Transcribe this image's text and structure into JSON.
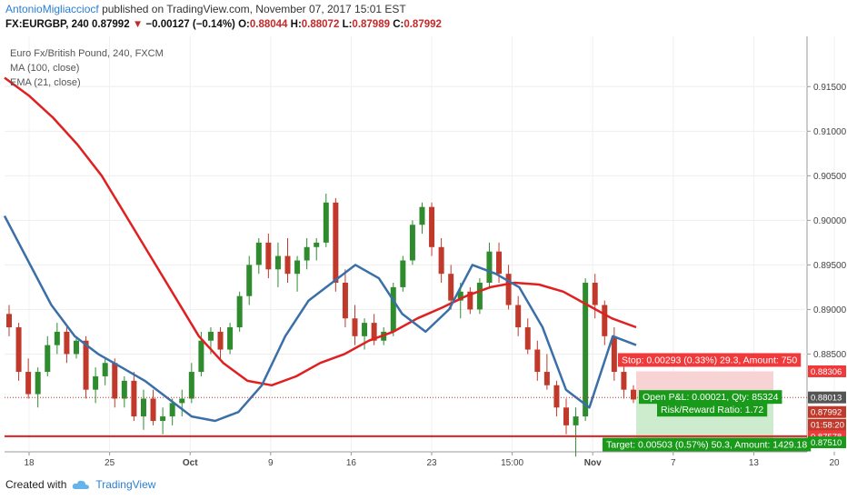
{
  "header": {
    "author": "AntonioMigliacciocf",
    "published_text": "published on TradingView.com, November 07, 2017 15:01 EST",
    "symbol": "FX:EURGBP, 240",
    "last_price": "0.87992",
    "change_arrow": "▼",
    "change": "−0.00127 (−0.14%)",
    "open_label": "O:",
    "open": "0.88044",
    "high_label": "H:",
    "high": "0.88072",
    "low_label": "L:",
    "low": "0.87989",
    "close_label": "C:",
    "close": "0.87992"
  },
  "legend": {
    "title": "Euro Fx/British Pound, 240, FXCM",
    "ma": "MA (100, close)",
    "ema": "EMA (21, close)"
  },
  "footer": {
    "created_with": "Created with",
    "brand": "TradingView"
  },
  "colors": {
    "up": "#2e8b2e",
    "down": "#c0392b",
    "ma": "#e02020",
    "ema": "#3a6fa8",
    "stop": "#f0393a",
    "target": "#1a9a1a",
    "stop_zone": "#f8d3d3",
    "target_zone": "#cdeccd",
    "support_line": "#e02020"
  },
  "chart_data": {
    "type": "candlestick",
    "title": "Euro Fx/British Pound, 240, FXCM",
    "ylim": [
      0.87403,
      0.92064
    ],
    "y_ticks": [
      "0.91500",
      "0.91000",
      "0.90500",
      "0.90000",
      "0.89500",
      "0.89000",
      "0.88500"
    ],
    "x_ticks": [
      "18",
      "25",
      "Oct",
      "9",
      "16",
      "23",
      "15:00",
      "Nov",
      "7",
      "13",
      "20"
    ],
    "price_tags": [
      {
        "value": "0.88306",
        "color": "#f0393a"
      },
      {
        "value": "0.88013",
        "color": "#555555"
      },
      {
        "value": "0.87992",
        "color": "#c0392b"
      },
      {
        "value": "01:58:20",
        "color": "#c0392b"
      },
      {
        "value": "0.87578",
        "color": "#f0393a"
      },
      {
        "value": "0.87510",
        "color": "#1a9a1a"
      }
    ],
    "support_level": 0.87578,
    "position": {
      "entry": 0.88013,
      "stop": 0.88306,
      "target": 0.8751,
      "stop_label": "Stop: 0.00293 (0.33%) 29.3, Amount: 750",
      "pnl_label": "Open P&L: 0.00021, Qty: 85324",
      "rr_label": "Risk/Reward Ratio: 1.72",
      "target_label": "Target: 0.00503 (0.57%) 50.3, Amount: 1429.18"
    },
    "ma100": [
      0.916,
      0.914,
      0.9115,
      0.9085,
      0.905,
      0.9005,
      0.896,
      0.8915,
      0.887,
      0.884,
      0.882,
      0.8815,
      0.8825,
      0.884,
      0.885,
      0.8865,
      0.8875,
      0.889,
      0.8902,
      0.8915,
      0.8925,
      0.893,
      0.8928,
      0.892,
      0.8905,
      0.889,
      0.888
    ],
    "ema21": [
      0.9005,
      0.8955,
      0.8905,
      0.887,
      0.885,
      0.8835,
      0.882,
      0.88,
      0.878,
      0.8775,
      0.8785,
      0.8815,
      0.887,
      0.891,
      0.893,
      0.895,
      0.8935,
      0.8895,
      0.8875,
      0.89,
      0.895,
      0.894,
      0.8925,
      0.888,
      0.881,
      0.879,
      0.887,
      0.886
    ],
    "candles": [
      [
        0.8895,
        0.8905,
        0.887,
        0.888
      ],
      [
        0.888,
        0.8885,
        0.882,
        0.883
      ],
      [
        0.883,
        0.8845,
        0.88,
        0.8805
      ],
      [
        0.8805,
        0.8835,
        0.879,
        0.883
      ],
      [
        0.883,
        0.887,
        0.8825,
        0.886
      ],
      [
        0.886,
        0.8885,
        0.885,
        0.8875
      ],
      [
        0.8875,
        0.888,
        0.884,
        0.885
      ],
      [
        0.885,
        0.887,
        0.8845,
        0.8865
      ],
      [
        0.8865,
        0.887,
        0.88,
        0.881
      ],
      [
        0.881,
        0.8835,
        0.8795,
        0.8825
      ],
      [
        0.8825,
        0.8845,
        0.8815,
        0.884
      ],
      [
        0.884,
        0.8845,
        0.879,
        0.88
      ],
      [
        0.88,
        0.8825,
        0.879,
        0.882
      ],
      [
        0.882,
        0.883,
        0.8775,
        0.878
      ],
      [
        0.878,
        0.881,
        0.8765,
        0.88
      ],
      [
        0.88,
        0.881,
        0.877,
        0.8775
      ],
      [
        0.8775,
        0.879,
        0.876,
        0.878
      ],
      [
        0.878,
        0.88,
        0.877,
        0.8795
      ],
      [
        0.8795,
        0.881,
        0.878,
        0.88
      ],
      [
        0.88,
        0.884,
        0.8795,
        0.883
      ],
      [
        0.883,
        0.8875,
        0.8825,
        0.8865
      ],
      [
        0.8865,
        0.888,
        0.885,
        0.8875
      ],
      [
        0.8875,
        0.888,
        0.8845,
        0.8855
      ],
      [
        0.8855,
        0.8885,
        0.885,
        0.888
      ],
      [
        0.888,
        0.892,
        0.8875,
        0.8915
      ],
      [
        0.8915,
        0.896,
        0.8905,
        0.895
      ],
      [
        0.895,
        0.898,
        0.894,
        0.8975
      ],
      [
        0.8975,
        0.8985,
        0.8935,
        0.8945
      ],
      [
        0.8945,
        0.8975,
        0.8925,
        0.896
      ],
      [
        0.896,
        0.898,
        0.893,
        0.894
      ],
      [
        0.894,
        0.896,
        0.892,
        0.8955
      ],
      [
        0.8955,
        0.898,
        0.8945,
        0.897
      ],
      [
        0.897,
        0.898,
        0.8955,
        0.8975
      ],
      [
        0.8975,
        0.903,
        0.897,
        0.902
      ],
      [
        0.902,
        0.9025,
        0.892,
        0.893
      ],
      [
        0.893,
        0.8945,
        0.888,
        0.889
      ],
      [
        0.889,
        0.8905,
        0.886,
        0.887
      ],
      [
        0.887,
        0.889,
        0.8855,
        0.8885
      ],
      [
        0.8885,
        0.8895,
        0.886,
        0.8865
      ],
      [
        0.8865,
        0.888,
        0.886,
        0.8875
      ],
      [
        0.8875,
        0.893,
        0.887,
        0.8925
      ],
      [
        0.8925,
        0.896,
        0.892,
        0.8955
      ],
      [
        0.8955,
        0.9,
        0.895,
        0.8995
      ],
      [
        0.8995,
        0.902,
        0.8985,
        0.9015
      ],
      [
        0.9015,
        0.902,
        0.896,
        0.897
      ],
      [
        0.897,
        0.898,
        0.893,
        0.894
      ],
      [
        0.894,
        0.895,
        0.89,
        0.891
      ],
      [
        0.891,
        0.893,
        0.889,
        0.892
      ],
      [
        0.892,
        0.8925,
        0.8895,
        0.89
      ],
      [
        0.89,
        0.8935,
        0.8895,
        0.893
      ],
      [
        0.893,
        0.8975,
        0.8925,
        0.8965
      ],
      [
        0.8965,
        0.8975,
        0.893,
        0.894
      ],
      [
        0.894,
        0.895,
        0.89,
        0.8905
      ],
      [
        0.8905,
        0.8915,
        0.887,
        0.888
      ],
      [
        0.888,
        0.889,
        0.885,
        0.8855
      ],
      [
        0.8855,
        0.8865,
        0.882,
        0.883
      ],
      [
        0.883,
        0.885,
        0.881,
        0.8815
      ],
      [
        0.8815,
        0.882,
        0.878,
        0.879
      ],
      [
        0.879,
        0.88,
        0.876,
        0.877
      ],
      [
        0.877,
        0.879,
        0.8735,
        0.878
      ],
      [
        0.878,
        0.8935,
        0.8775,
        0.893
      ],
      [
        0.893,
        0.894,
        0.889,
        0.8905
      ],
      [
        0.8905,
        0.891,
        0.886,
        0.887
      ],
      [
        0.887,
        0.888,
        0.882,
        0.883
      ],
      [
        0.883,
        0.884,
        0.88,
        0.881
      ],
      [
        0.881,
        0.8815,
        0.8795,
        0.8799
      ]
    ]
  }
}
